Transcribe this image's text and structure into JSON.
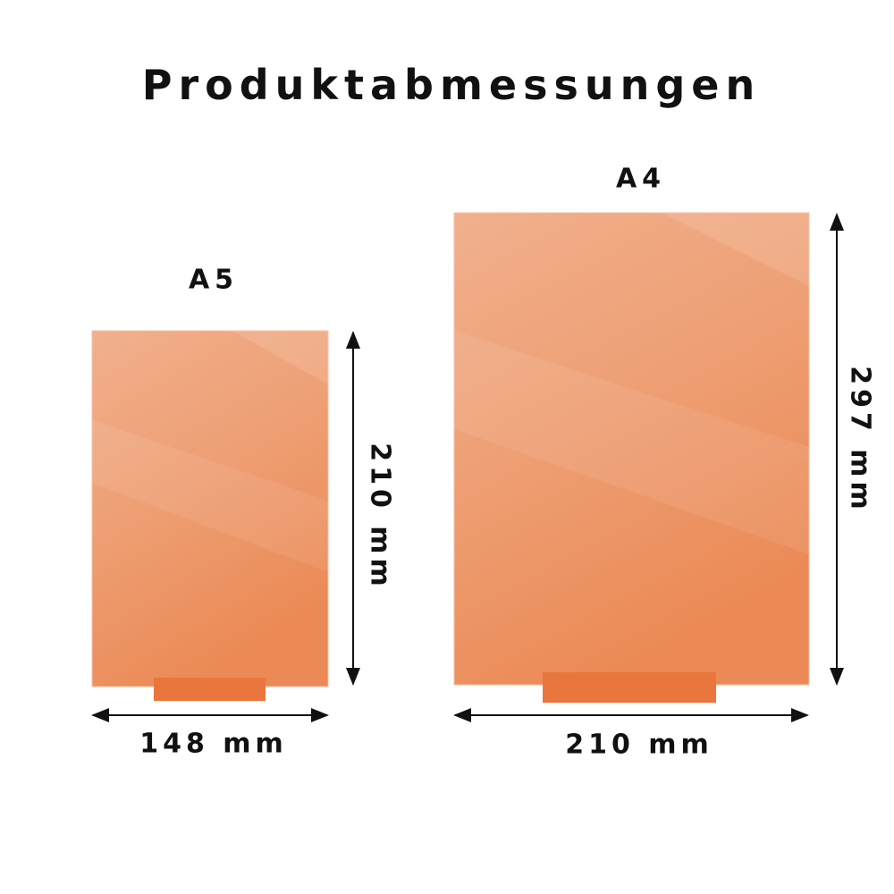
{
  "title": "Produktabmessungen",
  "colors": {
    "panel": "#ec9466",
    "panel_light": "#f0ae8a",
    "stand": "#e9763c",
    "arrow": "#111111"
  },
  "products": [
    {
      "label": "A5",
      "width": "148 mm",
      "height": "210 mm"
    },
    {
      "label": "A4",
      "width": "210 mm",
      "height": "297 mm"
    }
  ]
}
